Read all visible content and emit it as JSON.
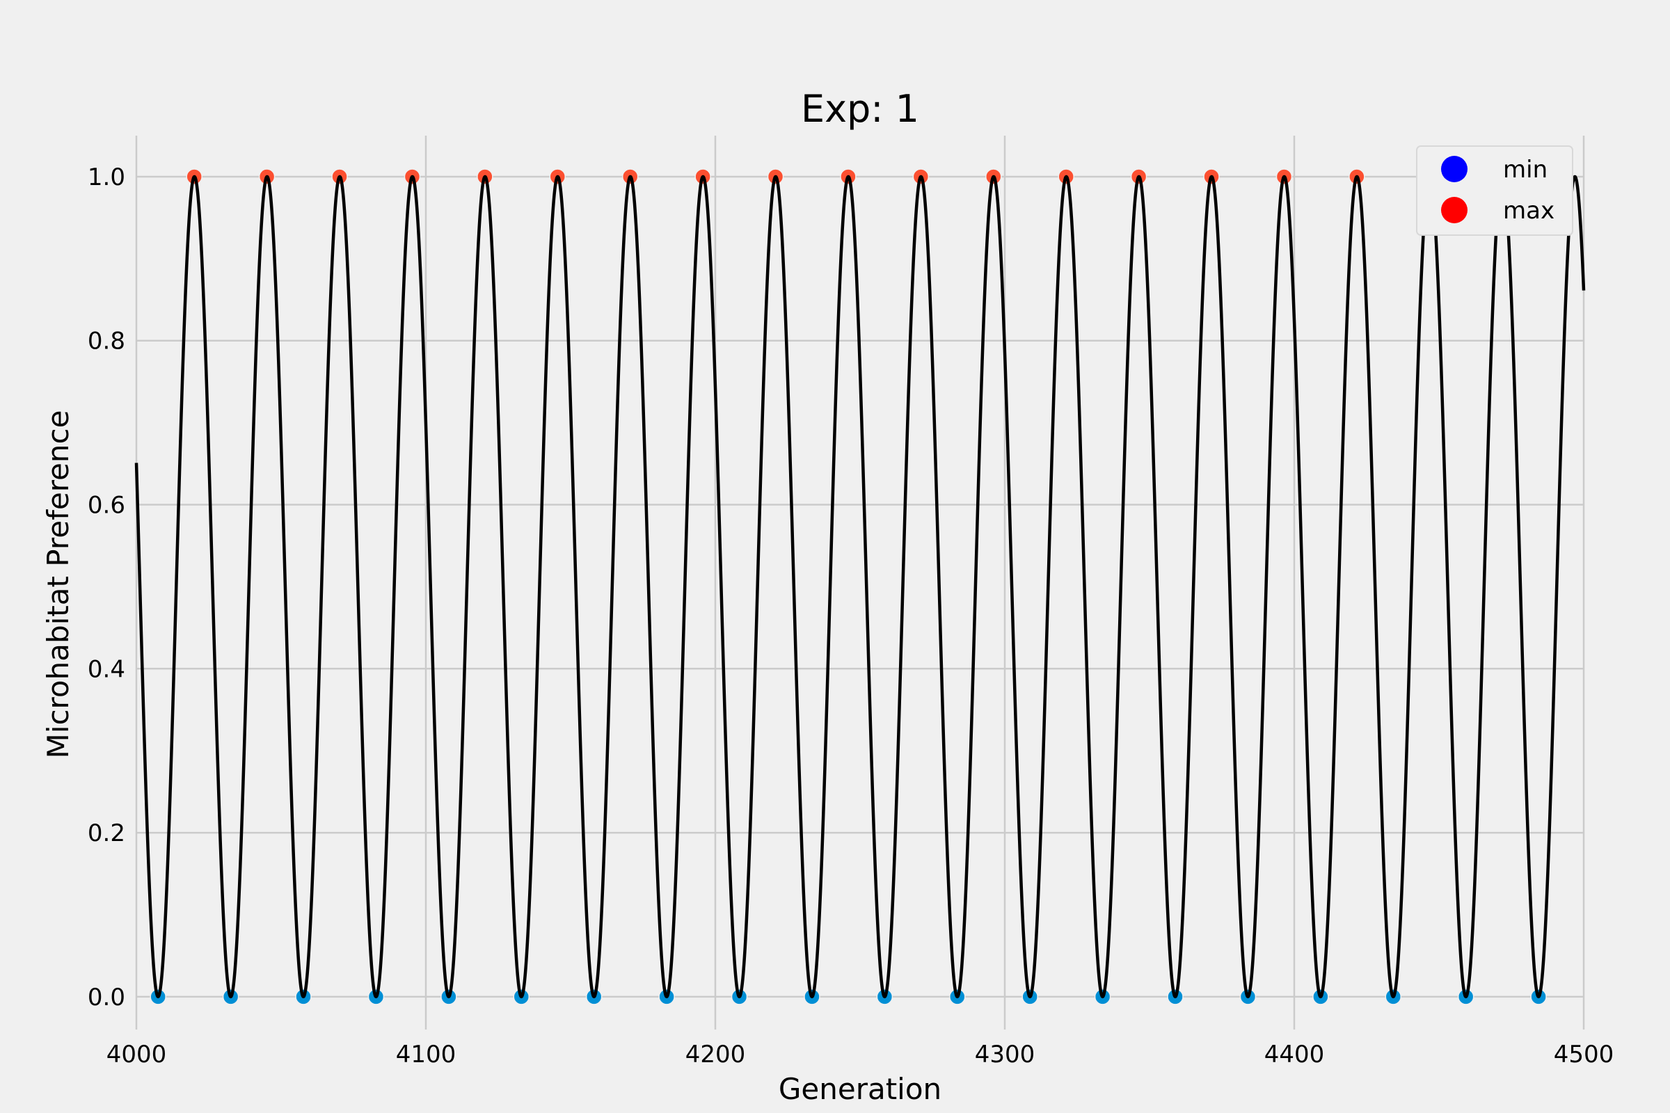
{
  "chart_data": {
    "type": "line",
    "title": "Exp: 1",
    "xlabel": "Generation",
    "ylabel": "Microhabitat Preference",
    "xlim": [
      4000,
      4500
    ],
    "ylim": [
      -0.04,
      1.05
    ],
    "x_ticks": [
      4000,
      4100,
      4200,
      4300,
      4400,
      4500
    ],
    "y_ticks": [
      0.0,
      0.2,
      0.4,
      0.6,
      0.8,
      1.0
    ],
    "x_tick_labels": [
      "4000",
      "4100",
      "4200",
      "4300",
      "4400",
      "4500"
    ],
    "y_tick_labels": [
      "0.0",
      "0.2",
      "0.4",
      "0.6",
      "0.8",
      "1.0"
    ],
    "grid": true,
    "legend": {
      "position": "top-right",
      "entries": [
        {
          "label": "min",
          "color": "#0000ff"
        },
        {
          "label": "max",
          "color": "#ff0000"
        }
      ]
    },
    "series": [
      {
        "kind": "line",
        "color": "#000000",
        "x_start": 4000,
        "x_end": 4500,
        "period": 25.1,
        "first_min_x": 4007.5,
        "y_min": 0.0,
        "y_max": 1.0
      },
      {
        "name": "min",
        "kind": "scatter",
        "color": "#008fd5",
        "x": [
          4007.5,
          4032.6,
          4057.7,
          4082.8,
          4107.9,
          4133.0,
          4158.1,
          4183.2,
          4208.3,
          4233.4,
          4258.5,
          4283.6,
          4308.7,
          4333.8,
          4358.9,
          4384.0,
          4409.1,
          4434.2,
          4459.3,
          4484.4
        ],
        "y": [
          0,
          0,
          0,
          0,
          0,
          0,
          0,
          0,
          0,
          0,
          0,
          0,
          0,
          0,
          0,
          0,
          0,
          0,
          0,
          0
        ]
      },
      {
        "name": "max",
        "kind": "scatter",
        "color": "#fc4f30",
        "x": [
          4020.0,
          4045.1,
          4070.2,
          4095.3,
          4120.4,
          4145.5,
          4170.6,
          4195.7,
          4220.8,
          4245.9,
          4271.0,
          4296.1,
          4321.2,
          4346.3,
          4371.4,
          4396.5,
          4421.6,
          4446.7,
          4471.8
        ],
        "y": [
          1,
          1,
          1,
          1,
          1,
          1,
          1,
          1,
          1,
          1,
          1,
          1,
          1,
          1,
          1,
          1,
          1,
          1,
          1
        ]
      }
    ]
  }
}
